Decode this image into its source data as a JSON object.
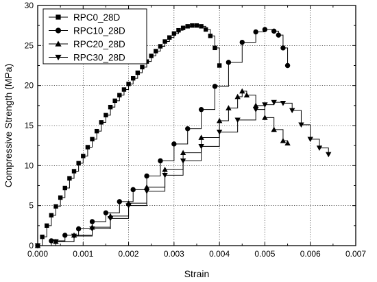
{
  "chart_data": {
    "type": "line",
    "xlabel": "Strain",
    "ylabel": "Compressive Strength (MPa)",
    "xlim": [
      0,
      0.007
    ],
    "ylim": [
      0,
      30
    ],
    "x_ticks": [
      "0.000",
      "0.001",
      "0.002",
      "0.003",
      "0.004",
      "0.005",
      "0.006",
      "0.007"
    ],
    "y_ticks": [
      "0",
      "5",
      "10",
      "15",
      "20",
      "25",
      "30"
    ],
    "grid": true,
    "legend_position": "top-left",
    "series": [
      {
        "name": "RPC0_28D",
        "marker": "square",
        "x": [
          0,
          0.0001,
          0.0002,
          0.0003,
          0.0004,
          0.0005,
          0.0006,
          0.0007,
          0.0008,
          0.0009,
          0.001,
          0.0011,
          0.0012,
          0.0013,
          0.0014,
          0.0015,
          0.0016,
          0.0017,
          0.0018,
          0.0019,
          0.002,
          0.0021,
          0.0022,
          0.0023,
          0.0024,
          0.0025,
          0.0026,
          0.0027,
          0.0028,
          0.0029,
          0.003,
          0.0031,
          0.0032,
          0.0033,
          0.0034,
          0.0035,
          0.0036,
          0.0037,
          0.0038,
          0.0039,
          0.004
        ],
        "values": [
          0,
          1.1,
          2.5,
          3.8,
          4.9,
          6.0,
          7.2,
          8.4,
          9.3,
          10.3,
          11.2,
          12.3,
          13.3,
          14.3,
          15.4,
          16.3,
          17.3,
          18.1,
          18.8,
          19.5,
          20.2,
          20.9,
          21.6,
          22.3,
          23.0,
          23.7,
          24.3,
          24.9,
          25.5,
          26.0,
          26.5,
          26.9,
          27.2,
          27.4,
          27.5,
          27.5,
          27.4,
          27.0,
          26.2,
          24.7,
          22.5
        ]
      },
      {
        "name": "RPC10_28D",
        "marker": "circle",
        "x": [
          0,
          0.0003,
          0.0006,
          0.0009,
          0.0012,
          0.0015,
          0.0018,
          0.0021,
          0.0024,
          0.0027,
          0.003,
          0.0033,
          0.0036,
          0.0039,
          0.0042,
          0.0045,
          0.0048,
          0.005,
          0.0052,
          0.0053,
          0.0054,
          0.0055
        ],
        "values": [
          0,
          0.6,
          1.3,
          2.1,
          3.0,
          4.1,
          5.5,
          7.0,
          8.7,
          10.6,
          12.7,
          14.6,
          17.0,
          19.9,
          22.9,
          25.4,
          26.7,
          27.0,
          26.8,
          26.3,
          24.7,
          22.5
        ]
      },
      {
        "name": "RPC20_28D",
        "marker": "triangle-up",
        "x": [
          0,
          0.0004,
          0.0008,
          0.0012,
          0.0016,
          0.002,
          0.0024,
          0.0028,
          0.0032,
          0.0036,
          0.004,
          0.0042,
          0.0044,
          0.0045,
          0.0046,
          0.0048,
          0.005,
          0.0052,
          0.0054,
          0.0055
        ],
        "values": [
          0,
          0.5,
          1.3,
          2.3,
          3.7,
          5.3,
          7.3,
          9.5,
          11.6,
          13.5,
          15.6,
          17.2,
          18.6,
          19.3,
          18.8,
          17.5,
          16.0,
          14.5,
          13.1,
          12.8
        ]
      },
      {
        "name": "RPC30_28D",
        "marker": "triangle-down",
        "x": [
          0,
          0.0004,
          0.0008,
          0.0012,
          0.0016,
          0.002,
          0.0024,
          0.0028,
          0.0032,
          0.0036,
          0.004,
          0.0044,
          0.0048,
          0.005,
          0.0052,
          0.0054,
          0.0056,
          0.0058,
          0.006,
          0.0062,
          0.0064
        ],
        "values": [
          0,
          0.5,
          1.2,
          2.1,
          3.4,
          5.0,
          6.8,
          8.8,
          10.6,
          12.4,
          14.2,
          15.7,
          17.0,
          17.6,
          17.9,
          17.8,
          16.9,
          15.1,
          13.3,
          12.2,
          11.4
        ]
      }
    ]
  }
}
